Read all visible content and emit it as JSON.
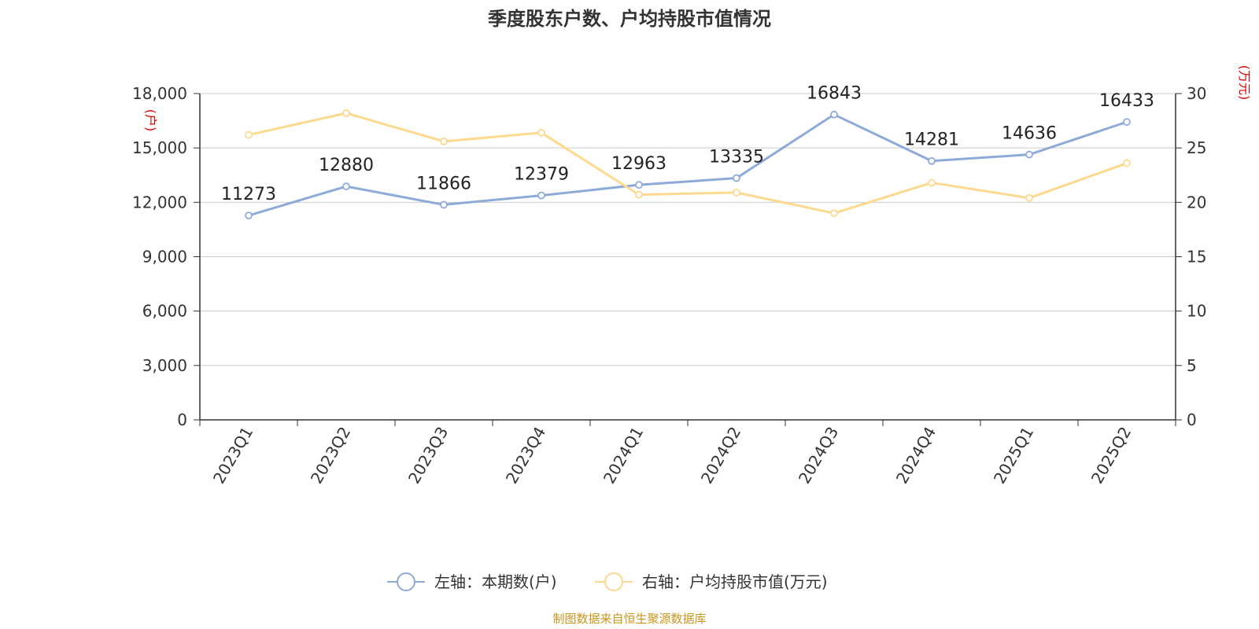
{
  "chart_data": {
    "type": "line",
    "title": "季度股东户数、户均持股市值情况",
    "categories": [
      "2023Q1",
      "2023Q2",
      "2023Q3",
      "2023Q4",
      "2024Q1",
      "2024Q2",
      "2024Q3",
      "2024Q4",
      "2025Q1",
      "2025Q2"
    ],
    "left_axis": {
      "unit": "(户)",
      "ylim": [
        0,
        18000
      ],
      "ticks": [
        "0",
        "3,000",
        "6,000",
        "9,000",
        "12,000",
        "15,000",
        "18,000"
      ],
      "tick_values": [
        0,
        3000,
        6000,
        9000,
        12000,
        15000,
        18000
      ]
    },
    "right_axis": {
      "unit": "(万元)",
      "ylim": [
        0,
        30
      ],
      "ticks": [
        "0",
        "5",
        "10",
        "15",
        "20",
        "25",
        "30"
      ],
      "tick_values": [
        0,
        5,
        10,
        15,
        20,
        25,
        30
      ]
    },
    "series": [
      {
        "name": "左轴：本期数(户)",
        "axis": "left",
        "color": "#8eabd8",
        "values": [
          11273,
          12880,
          11866,
          12379,
          12963,
          13335,
          16843,
          14281,
          14636,
          16433
        ],
        "data_labels": [
          "11273",
          "12880",
          "11866",
          "12379",
          "12963",
          "13335",
          "16843",
          "14281",
          "14636",
          "16433"
        ]
      },
      {
        "name": "右轴：户均持股市值(万元)",
        "axis": "right",
        "color": "#fdd98f",
        "values": [
          26.2,
          28.2,
          25.6,
          26.4,
          20.7,
          20.9,
          19.0,
          21.8,
          20.4,
          23.6
        ]
      }
    ],
    "grid": true,
    "legend_position": "bottom-center",
    "source": "制图数据来自恒生聚源数据库"
  }
}
